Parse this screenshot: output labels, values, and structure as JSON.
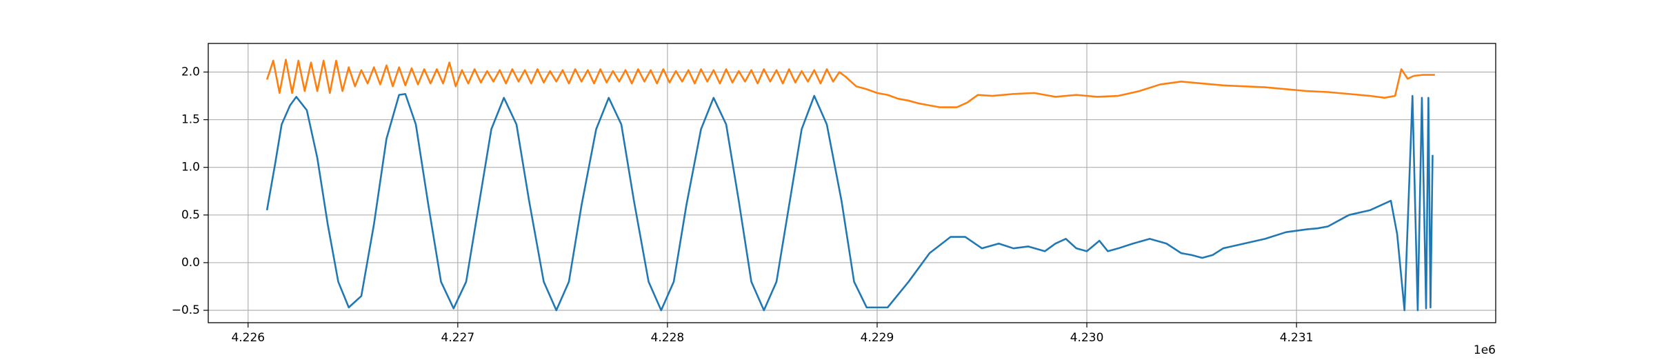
{
  "chart_data": {
    "type": "line",
    "x_offset_label": "1e6",
    "xlim": [
      4225810,
      4231950
    ],
    "ylim": [
      -0.63,
      2.3
    ],
    "xticks": [
      {
        "value": 4226000,
        "label": "4.226"
      },
      {
        "value": 4227000,
        "label": "4.227"
      },
      {
        "value": 4228000,
        "label": "4.228"
      },
      {
        "value": 4229000,
        "label": "4.229"
      },
      {
        "value": 4230000,
        "label": "4.230"
      },
      {
        "value": 4231000,
        "label": "4.231"
      }
    ],
    "yticks": [
      {
        "value": -0.5,
        "label": "−0.5"
      },
      {
        "value": 0,
        "label": "0.0"
      },
      0.5,
      {
        "value": 1,
        "label": "1.0"
      },
      1.5,
      {
        "value": 2,
        "label": "2.0"
      }
    ],
    "grid": true,
    "series": [
      {
        "color": "#1f77b4",
        "x": [
          4226090,
          4226130,
          4226160,
          4226200,
          4226230,
          4226280,
          4226330,
          4226380,
          4226430,
          4226480,
          4226540,
          4226600,
          4226660,
          4226720,
          4226750,
          4226800,
          4226860,
          4226920,
          4226980,
          4227040,
          4227100,
          4227160,
          4227220,
          4227280,
          4227340,
          4227410,
          4227470,
          4227530,
          4227590,
          4227660,
          4227720,
          4227780,
          4227840,
          4227910,
          4227970,
          4228030,
          4228090,
          4228160,
          4228220,
          4228280,
          4228340,
          4228400,
          4228460,
          4228520,
          4228580,
          4228640,
          4228700,
          4228760,
          4228830,
          4228890,
          4228950,
          4229050,
          4229150,
          4229250,
          4229350,
          4229420,
          4229500,
          4229580,
          4229650,
          4229720,
          4229800,
          4229850,
          4229900,
          4229950,
          4230000,
          4230060,
          4230100,
          4230150,
          4230220,
          4230300,
          4230380,
          4230450,
          4230500,
          4230550,
          4230600,
          4230650,
          4230750,
          4230850,
          4230950,
          4231050,
          4231100,
          4231150,
          4231250,
          4231350,
          4231450,
          4231480,
          4231515,
          4231553,
          4231578,
          4231598,
          4231618,
          4231629,
          4231639,
          4231649
        ],
        "values": [
          0.55,
          1.05,
          1.45,
          1.65,
          1.74,
          1.6,
          1.1,
          0.4,
          -0.2,
          -0.47,
          -0.35,
          0.4,
          1.3,
          1.76,
          1.77,
          1.45,
          0.6,
          -0.2,
          -0.48,
          -0.2,
          0.6,
          1.4,
          1.73,
          1.45,
          0.65,
          -0.2,
          -0.5,
          -0.2,
          0.6,
          1.4,
          1.73,
          1.45,
          0.65,
          -0.2,
          -0.5,
          -0.2,
          0.6,
          1.4,
          1.73,
          1.45,
          0.65,
          -0.2,
          -0.5,
          -0.2,
          0.6,
          1.4,
          1.75,
          1.45,
          0.65,
          -0.2,
          -0.47,
          -0.47,
          -0.2,
          0.1,
          0.27,
          0.27,
          0.15,
          0.2,
          0.15,
          0.17,
          0.12,
          0.2,
          0.25,
          0.15,
          0.12,
          0.23,
          0.12,
          0.15,
          0.2,
          0.25,
          0.2,
          0.1,
          0.08,
          0.05,
          0.08,
          0.15,
          0.2,
          0.25,
          0.32,
          0.35,
          0.36,
          0.38,
          0.5,
          0.55,
          0.65,
          0.3,
          -0.5,
          1.75,
          -0.5,
          1.73,
          -0.48,
          1.73,
          -0.47,
          1.13
        ]
      },
      {
        "color": "#ff7f0e",
        "x": [
          4226090,
          4226120,
          4226150,
          4226180,
          4226210,
          4226240,
          4226270,
          4226300,
          4226330,
          4226360,
          4226390,
          4226420,
          4226450,
          4226480,
          4226510,
          4226540,
          4226570,
          4226600,
          4226630,
          4226660,
          4226690,
          4226720,
          4226750,
          4226780,
          4226810,
          4226840,
          4226870,
          4226900,
          4226930,
          4226960,
          4226990,
          4227020,
          4227050,
          4227080,
          4227110,
          4227140,
          4227170,
          4227200,
          4227230,
          4227260,
          4227290,
          4227320,
          4227350,
          4227380,
          4227410,
          4227440,
          4227470,
          4227500,
          4227530,
          4227560,
          4227590,
          4227620,
          4227650,
          4227680,
          4227710,
          4227740,
          4227770,
          4227800,
          4227830,
          4227860,
          4227890,
          4227920,
          4227950,
          4227980,
          4228010,
          4228040,
          4228070,
          4228100,
          4228130,
          4228160,
          4228190,
          4228220,
          4228250,
          4228280,
          4228310,
          4228340,
          4228370,
          4228400,
          4228430,
          4228460,
          4228490,
          4228520,
          4228550,
          4228580,
          4228610,
          4228640,
          4228670,
          4228700,
          4228730,
          4228760,
          4228790,
          4228820,
          4228850,
          4228900,
          4228950,
          4229000,
          4229050,
          4229100,
          4229150,
          4229200,
          4229250,
          4229300,
          4229380,
          4229430,
          4229480,
          4229550,
          4229650,
          4229750,
          4229850,
          4229950,
          4230050,
          4230150,
          4230250,
          4230350,
          4230450,
          4230550,
          4230650,
          4230750,
          4230850,
          4230950,
          4231050,
          4231150,
          4231250,
          4231350,
          4231420,
          4231470,
          4231500,
          4231530,
          4231560,
          4231600,
          4231660
        ],
        "values": [
          1.92,
          2.12,
          1.78,
          2.13,
          1.78,
          2.12,
          1.8,
          2.1,
          1.8,
          2.12,
          1.78,
          2.12,
          1.8,
          2.05,
          1.85,
          2.02,
          1.88,
          2.05,
          1.87,
          2.07,
          1.85,
          2.05,
          1.86,
          2.04,
          1.87,
          2.03,
          1.88,
          2.03,
          1.88,
          2.1,
          1.85,
          2.02,
          1.88,
          2.03,
          1.89,
          2.01,
          1.9,
          2.02,
          1.88,
          2.03,
          1.9,
          2.02,
          1.88,
          2.03,
          1.89,
          2.01,
          1.9,
          2.02,
          1.88,
          2.03,
          1.9,
          2.02,
          1.88,
          2.03,
          1.89,
          2.01,
          1.9,
          2.02,
          1.88,
          2.03,
          1.9,
          2.02,
          1.88,
          2.03,
          1.89,
          2.01,
          1.9,
          2.02,
          1.88,
          2.03,
          1.9,
          2.02,
          1.88,
          2.03,
          1.89,
          2.01,
          1.9,
          2.02,
          1.88,
          2.03,
          1.9,
          2.02,
          1.88,
          2.03,
          1.89,
          2.01,
          1.9,
          2.02,
          1.88,
          2.03,
          1.9,
          2.0,
          1.95,
          1.85,
          1.82,
          1.78,
          1.76,
          1.72,
          1.7,
          1.67,
          1.65,
          1.63,
          1.63,
          1.68,
          1.76,
          1.75,
          1.77,
          1.78,
          1.74,
          1.76,
          1.74,
          1.75,
          1.8,
          1.87,
          1.9,
          1.88,
          1.86,
          1.85,
          1.84,
          1.82,
          1.8,
          1.79,
          1.77,
          1.75,
          1.73,
          1.75,
          2.03,
          1.93,
          1.96,
          1.97,
          1.97
        ]
      }
    ]
  }
}
